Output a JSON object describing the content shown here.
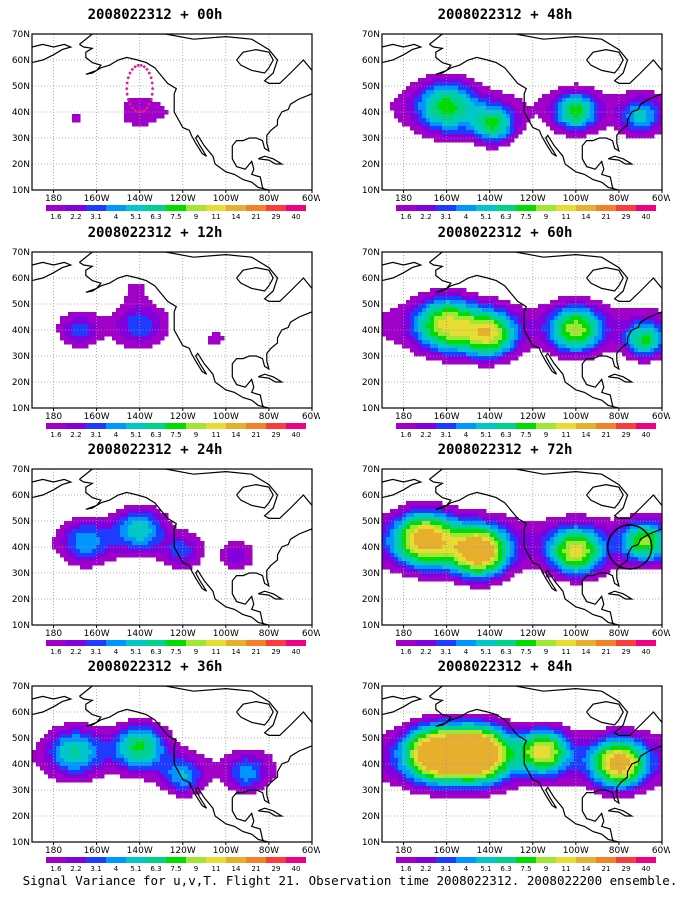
{
  "panels": [
    {
      "title": "2008022312 + 00h",
      "lead": "00h",
      "intensity": 0.22,
      "centers": [
        {
          "lon": -170,
          "lat": 37,
          "r": 11,
          "k": 1.0
        },
        {
          "lon": -140,
          "lat": 40,
          "r": 13,
          "k": 1.35
        },
        {
          "lon": -125,
          "lat": 40,
          "r": 7,
          "k": 0.45
        },
        {
          "lon": -95,
          "lat": 34,
          "r": 6,
          "k": 0.25
        }
      ],
      "observations": true
    },
    {
      "title": "2008022312 + 12h",
      "lead": "12h",
      "intensity": 0.35,
      "centers": [
        {
          "lon": -168,
          "lat": 40,
          "r": 10,
          "k": 1.3
        },
        {
          "lon": -140,
          "lat": 42,
          "r": 13,
          "k": 1.4
        },
        {
          "lon": -142,
          "lat": 56,
          "r": 6,
          "k": 0.8
        },
        {
          "lon": -105,
          "lat": 36,
          "r": 8,
          "k": 0.6
        }
      ]
    },
    {
      "title": "2008022312 + 24h",
      "lead": "24h",
      "intensity": 0.48,
      "centers": [
        {
          "lon": -165,
          "lat": 42,
          "r": 12,
          "k": 1.2
        },
        {
          "lon": -140,
          "lat": 47,
          "r": 12,
          "k": 1.5
        },
        {
          "lon": -120,
          "lat": 38,
          "r": 9,
          "k": 0.9
        },
        {
          "lon": -95,
          "lat": 36,
          "r": 8,
          "k": 0.7
        }
      ]
    },
    {
      "title": "2008022312 + 36h",
      "lead": "36h",
      "intensity": 0.6,
      "centers": [
        {
          "lon": -170,
          "lat": 45,
          "r": 13,
          "k": 1.2
        },
        {
          "lon": -140,
          "lat": 47,
          "r": 12,
          "k": 1.5
        },
        {
          "lon": -120,
          "lat": 35,
          "r": 10,
          "k": 1.0
        },
        {
          "lon": -90,
          "lat": 36,
          "r": 10,
          "k": 0.9
        }
      ]
    },
    {
      "title": "2008022312 + 48h",
      "lead": "48h",
      "intensity": 0.72,
      "centers": [
        {
          "lon": -160,
          "lat": 42,
          "r": 14,
          "k": 1.2
        },
        {
          "lon": -138,
          "lat": 35,
          "r": 10,
          "k": 1.2
        },
        {
          "lon": -100,
          "lat": 40,
          "r": 10,
          "k": 1.2
        },
        {
          "lon": -70,
          "lat": 38,
          "r": 10,
          "k": 0.8
        }
      ]
    },
    {
      "title": "2008022312 + 60h",
      "lead": "60h",
      "intensity": 0.85,
      "centers": [
        {
          "lon": -160,
          "lat": 42,
          "r": 14,
          "k": 1.3
        },
        {
          "lon": -140,
          "lat": 38,
          "r": 12,
          "k": 1.3
        },
        {
          "lon": -100,
          "lat": 40,
          "r": 12,
          "k": 1.2
        },
        {
          "lon": -68,
          "lat": 36,
          "r": 9,
          "k": 1.0
        }
      ]
    },
    {
      "title": "2008022312 + 72h",
      "lead": "72h",
      "intensity": 1.0,
      "centers": [
        {
          "lon": -170,
          "lat": 43,
          "r": 14,
          "k": 1.35
        },
        {
          "lon": -145,
          "lat": 38,
          "r": 13,
          "k": 1.5
        },
        {
          "lon": -100,
          "lat": 38,
          "r": 12,
          "k": 1.1
        },
        {
          "lon": -68,
          "lat": 42,
          "r": 10,
          "k": 0.9
        }
      ],
      "circle": true
    },
    {
      "title": "2008022312 + 84h",
      "lead": "84h",
      "intensity": 1.1,
      "centers": [
        {
          "lon": -165,
          "lat": 44,
          "r": 14,
          "k": 1.4
        },
        {
          "lon": -145,
          "lat": 44,
          "r": 14,
          "k": 1.55
        },
        {
          "lon": -115,
          "lat": 45,
          "r": 11,
          "k": 1.0
        },
        {
          "lon": -80,
          "lat": 40,
          "r": 12,
          "k": 1.2
        }
      ]
    }
  ],
  "map": {
    "lon_range": [
      -190,
      -60
    ],
    "lat_range": [
      10,
      70
    ],
    "lon_ticks": [
      "180",
      "160W",
      "140W",
      "120W",
      "100W",
      "80W",
      "60W"
    ],
    "lat_ticks": [
      "10N",
      "20N",
      "30N",
      "40N",
      "50N",
      "60N",
      "70N"
    ]
  },
  "colorbar": {
    "labels": [
      "1.6",
      "2.2",
      "3.1",
      "4",
      "5.1",
      "6.3",
      "7.5",
      "9",
      "11",
      "14",
      "21",
      "29",
      "40"
    ],
    "colors": [
      "#a000c8",
      "#8200dc",
      "#1e3cff",
      "#0096ff",
      "#00c8c8",
      "#00d28c",
      "#00dc00",
      "#a0e632",
      "#e6dc32",
      "#e6af2d",
      "#f08228",
      "#fa3c3c",
      "#f00082"
    ]
  },
  "footer": "Signal Variance for u,v,T. Flight 21. Observation time 2008022312. 2008022200 ensemble."
}
